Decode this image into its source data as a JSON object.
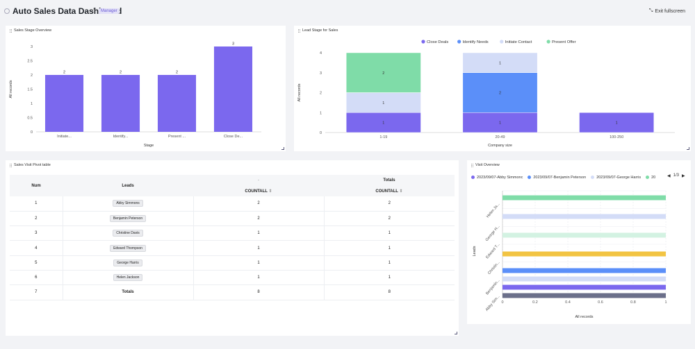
{
  "header": {
    "title": "Auto Sales Data Dashboard",
    "role_badge": "Manager",
    "exit_fullscreen": "Exit fullscreen"
  },
  "panels": {
    "stage_overview": {
      "title": "Sales Stage Overview",
      "chart_data": {
        "type": "bar",
        "categories": [
          "Initiate...",
          "Identify...",
          "Present ...",
          "Close De..."
        ],
        "values": [
          2,
          2,
          2,
          3
        ],
        "xlabel": "Stage",
        "ylabel": "All records",
        "ylim": [
          0,
          3
        ],
        "yticks": [
          "0",
          "0.5",
          "1",
          "1.5",
          "2",
          "2.5",
          "3"
        ],
        "color": "#7b68ee"
      }
    },
    "lead_stage": {
      "title": "Lead Stage for Sales",
      "chart_data": {
        "type": "bar",
        "stacked": true,
        "categories": [
          "1-19",
          "20-49",
          "100-250"
        ],
        "series": [
          {
            "name": "Close Deals",
            "values": [
              1,
              1,
              1
            ],
            "color": "#7b68ee"
          },
          {
            "name": "Identify Needs",
            "values": [
              0,
              2,
              0
            ],
            "color": "#5b8ff9"
          },
          {
            "name": "Initiate Contact",
            "values": [
              1,
              1,
              0
            ],
            "color": "#d3dcf7"
          },
          {
            "name": "Present Offer",
            "values": [
              2,
              0,
              0
            ],
            "color": "#7fdca8"
          }
        ],
        "xlabel": "Company size",
        "ylabel": "All records",
        "ylim": [
          0,
          4
        ],
        "yticks": [
          "0",
          "1",
          "2",
          "3",
          "4"
        ],
        "legend": "top"
      }
    },
    "pivot": {
      "title": "Sales Visit Pivot table",
      "headers": {
        "num": "Num",
        "leads": "Leads",
        "group_marker": "-",
        "totals": "Totals",
        "countall": "COUNTALL"
      },
      "rows": [
        {
          "num": "1",
          "lead": "Abby Simmons",
          "count": "2",
          "total": "2"
        },
        {
          "num": "2",
          "lead": "Benjamin Peterson",
          "count": "2",
          "total": "2"
        },
        {
          "num": "3",
          "lead": "Christine Davis",
          "count": "1",
          "total": "1"
        },
        {
          "num": "4",
          "lead": "Edward Thompson",
          "count": "1",
          "total": "1"
        },
        {
          "num": "5",
          "lead": "George Harris",
          "count": "1",
          "total": "1"
        },
        {
          "num": "6",
          "lead": "Helen Jackson",
          "count": "1",
          "total": "1"
        },
        {
          "num": "7",
          "lead": "Totals",
          "count": "8",
          "total": "8"
        }
      ]
    },
    "visit_overview": {
      "title": "Visit Overview",
      "legend_page": "1/3",
      "chart_data": {
        "type": "bar",
        "orientation": "horizontal",
        "legend_items": [
          {
            "name": "2023/09/07-Abby Simmonc",
            "color": "#7b68ee"
          },
          {
            "name": "2023/09/07-Benjamin Peterson",
            "color": "#5b8ff9"
          },
          {
            "name": "2023/09/07-George Harris",
            "color": "#d3dcf7"
          },
          {
            "name": "20",
            "color": "#7fdca8"
          }
        ],
        "categories": [
          "Helen Ja...",
          "George H...",
          "Edward T...",
          "Christin...",
          "Benjamin...",
          "Abby Sim..."
        ],
        "bars": [
          {
            "value": 1,
            "color": "#7fdca8"
          },
          {
            "value": 1,
            "color": "#d3dcf7"
          },
          {
            "value": 1,
            "color": "#d3f2e2"
          },
          {
            "value": 1,
            "color": "#f2c443"
          },
          {
            "value": 1,
            "color": "#5b8ff9"
          },
          {
            "value": 1,
            "color": "#d3dcf7"
          },
          {
            "value": 1,
            "color": "#7b68ee"
          },
          {
            "value": 1,
            "color": "#6b6f8a"
          }
        ],
        "xlabel": "All records",
        "ylabel": "Leads",
        "xlim": [
          0,
          1
        ],
        "xticks": [
          "0",
          "0.2",
          "0.4",
          "0.6",
          "0.8",
          "1"
        ]
      }
    }
  }
}
